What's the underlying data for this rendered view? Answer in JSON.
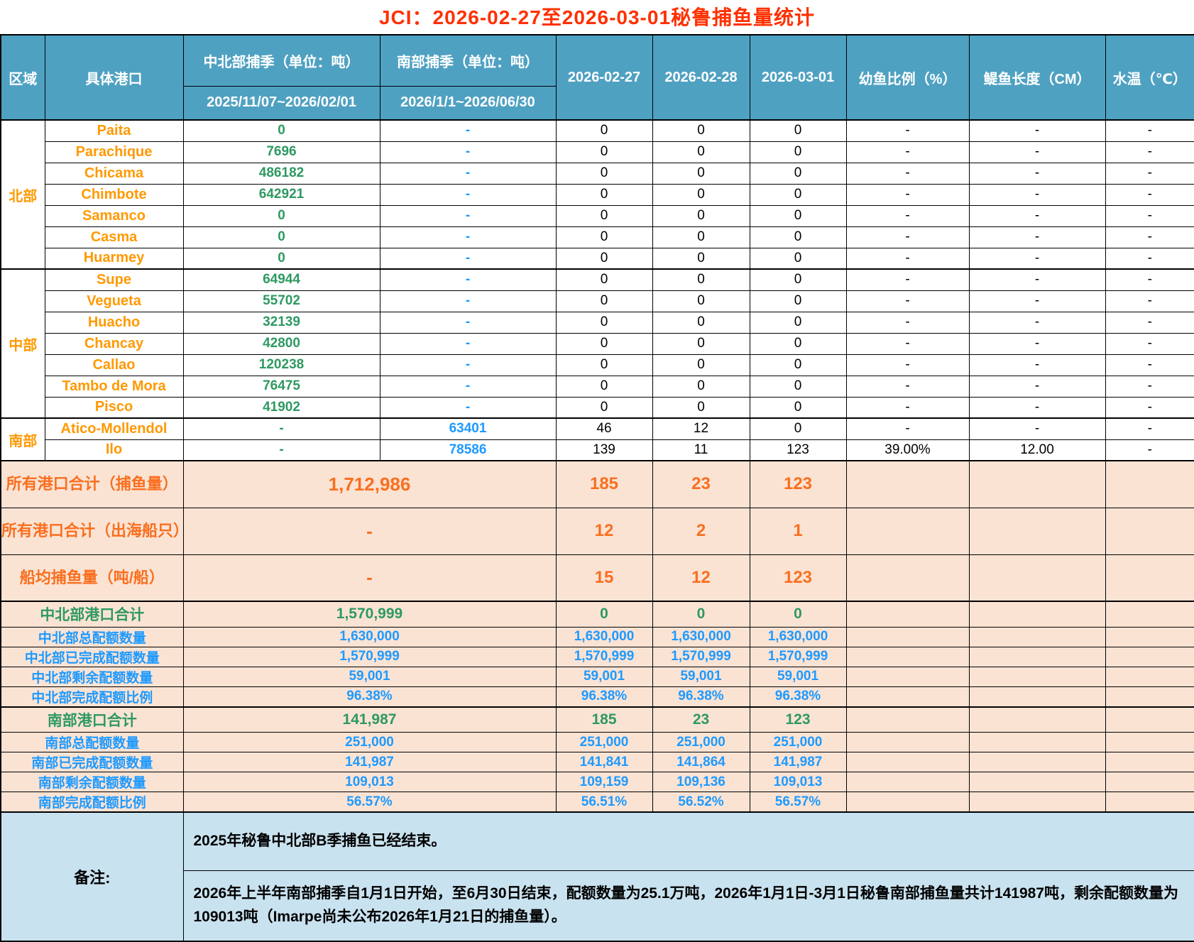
{
  "title": "JCI：2026-02-27至2026-03-01秘鲁捕鱼量统计",
  "colors": {
    "title_red": "#ff3000",
    "header_bg": "#4fa1c2",
    "port_orange": "#ff9900",
    "summary_orange": "#f96f1f",
    "value_green": "#2e9962",
    "value_blue": "#1e9aff",
    "summary_bg": "#fbe3d4",
    "notes_bg": "#c9e2ef"
  },
  "header": {
    "region": "区域",
    "port": "具体港口",
    "north_season": "中北部捕季（单位：吨）",
    "north_season_dates": "2025/11/07~2026/02/01",
    "south_season": "南部捕季（单位：吨）",
    "south_season_dates": "2026/1/1~2026/06/30",
    "day1": "2026-02-27",
    "day2": "2026-02-28",
    "day3": "2026-03-01",
    "juvenile": "幼鱼比例（%）",
    "length": "鳀鱼长度（CM）",
    "temp": "水温（℃）"
  },
  "regions": [
    {
      "name": "北部",
      "ports": [
        {
          "name": "Paita",
          "north": "0",
          "south": "-",
          "d1": "0",
          "d2": "0",
          "d3": "0",
          "juv": "-",
          "len": "-",
          "temp": "-"
        },
        {
          "name": "Parachique",
          "north": "7696",
          "south": "-",
          "d1": "0",
          "d2": "0",
          "d3": "0",
          "juv": "-",
          "len": "-",
          "temp": "-"
        },
        {
          "name": "Chicama",
          "north": "486182",
          "south": "-",
          "d1": "0",
          "d2": "0",
          "d3": "0",
          "juv": "-",
          "len": "-",
          "temp": "-"
        },
        {
          "name": "Chimbote",
          "north": "642921",
          "south": "-",
          "d1": "0",
          "d2": "0",
          "d3": "0",
          "juv": "-",
          "len": "-",
          "temp": "-"
        },
        {
          "name": "Samanco",
          "north": "0",
          "south": "-",
          "d1": "0",
          "d2": "0",
          "d3": "0",
          "juv": "-",
          "len": "-",
          "temp": "-"
        },
        {
          "name": "Casma",
          "north": "0",
          "south": "-",
          "d1": "0",
          "d2": "0",
          "d3": "0",
          "juv": "-",
          "len": "-",
          "temp": "-"
        },
        {
          "name": "Huarmey",
          "north": "0",
          "south": "-",
          "d1": "0",
          "d2": "0",
          "d3": "0",
          "juv": "-",
          "len": "-",
          "temp": "-"
        }
      ]
    },
    {
      "name": "中部",
      "ports": [
        {
          "name": "Supe",
          "north": "64944",
          "south": "-",
          "d1": "0",
          "d2": "0",
          "d3": "0",
          "juv": "-",
          "len": "-",
          "temp": "-"
        },
        {
          "name": "Vegueta",
          "north": "55702",
          "south": "-",
          "d1": "0",
          "d2": "0",
          "d3": "0",
          "juv": "-",
          "len": "-",
          "temp": "-"
        },
        {
          "name": "Huacho",
          "north": "32139",
          "south": "-",
          "d1": "0",
          "d2": "0",
          "d3": "0",
          "juv": "-",
          "len": "-",
          "temp": "-"
        },
        {
          "name": "Chancay",
          "north": "42800",
          "south": "-",
          "d1": "0",
          "d2": "0",
          "d3": "0",
          "juv": "-",
          "len": "-",
          "temp": "-"
        },
        {
          "name": "Callao",
          "north": "120238",
          "south": "-",
          "d1": "0",
          "d2": "0",
          "d3": "0",
          "juv": "-",
          "len": "-",
          "temp": "-"
        },
        {
          "name": "Tambo de Mora",
          "north": "76475",
          "south": "-",
          "d1": "0",
          "d2": "0",
          "d3": "0",
          "juv": "-",
          "len": "-",
          "temp": "-"
        },
        {
          "name": "Pisco",
          "north": "41902",
          "south": "-",
          "d1": "0",
          "d2": "0",
          "d3": "0",
          "juv": "-",
          "len": "-",
          "temp": "-"
        }
      ]
    },
    {
      "name": "南部",
      "ports": [
        {
          "name": "Atico-Mollendol",
          "north": "-",
          "south": "63401",
          "d1": "46",
          "d2": "12",
          "d3": "0",
          "juv": "-",
          "len": "-",
          "temp": "-"
        },
        {
          "name": "Ilo",
          "north": "-",
          "south": "78586",
          "d1": "139",
          "d2": "11",
          "d3": "123",
          "juv": "39.00%",
          "len": "12.00",
          "temp": "-"
        }
      ]
    }
  ],
  "summary_rows": [
    {
      "label": "所有港口合计（捕鱼量）",
      "season": "1,712,986",
      "d1": "185",
      "d2": "23",
      "d3": "123",
      "variant": "orange",
      "thick": true
    },
    {
      "label": "所有港口合计（出海船只）",
      "season": "-",
      "d1": "12",
      "d2": "2",
      "d3": "1",
      "variant": "orange",
      "thick": false
    },
    {
      "label": "船均捕鱼量（吨/船）",
      "season": "-",
      "d1": "15",
      "d2": "12",
      "d3": "123",
      "variant": "orange",
      "thick": false
    },
    {
      "label": "中北部港口合计",
      "season": "1,570,999",
      "d1": "0",
      "d2": "0",
      "d3": "0",
      "variant": "green",
      "thick": true
    },
    {
      "label": "中北部总配额数量",
      "season": "1,630,000",
      "d1": "1,630,000",
      "d2": "1,630,000",
      "d3": "1,630,000",
      "variant": "blue",
      "thick": false
    },
    {
      "label": "中北部已完成配额数量",
      "season": "1,570,999",
      "d1": "1,570,999",
      "d2": "1,570,999",
      "d3": "1,570,999",
      "variant": "blue",
      "thick": false
    },
    {
      "label": "中北部剩余配额数量",
      "season": "59,001",
      "d1": "59,001",
      "d2": "59,001",
      "d3": "59,001",
      "variant": "blue",
      "thick": false
    },
    {
      "label": "中北部完成配额比例",
      "season": "96.38%",
      "d1": "96.38%",
      "d2": "96.38%",
      "d3": "96.38%",
      "variant": "blue",
      "thick": false
    },
    {
      "label": "南部港口合计",
      "season": "141,987",
      "d1": "185",
      "d2": "23",
      "d3": "123",
      "variant": "green",
      "thick": true
    },
    {
      "label": "南部总配额数量",
      "season": "251,000",
      "d1": "251,000",
      "d2": "251,000",
      "d3": "251,000",
      "variant": "blue",
      "thick": false
    },
    {
      "label": "南部已完成配额数量",
      "season": "141,987",
      "d1": "141,841",
      "d2": "141,864",
      "d3": "141,987",
      "variant": "blue",
      "thick": false
    },
    {
      "label": "南部剩余配额数量",
      "season": "109,013",
      "d1": "109,159",
      "d2": "109,136",
      "d3": "109,013",
      "variant": "blue",
      "thick": false
    },
    {
      "label": "南部完成配额比例",
      "season": "56.57%",
      "d1": "56.51%",
      "d2": "56.52%",
      "d3": "56.57%",
      "variant": "blue",
      "thick": false
    }
  ],
  "notes": {
    "label": "备注:",
    "items": [
      "2025年秘鲁中北部B季捕鱼已经结束。",
      "2026年上半年南部捕季自1月1日开始，至6月30日结束，配额数量为25.1万吨，2026年1月1日-3月1日秘鲁南部捕鱼量共计141987吨，剩余配额数量为109013吨（Imarpe尚未公布2026年1月21日的捕鱼量）。"
    ]
  }
}
